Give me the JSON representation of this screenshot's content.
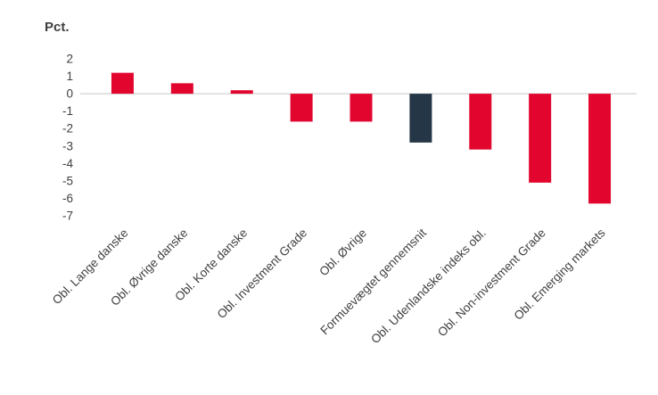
{
  "chart_data": {
    "type": "bar",
    "title": "",
    "ylabel": "Pct.",
    "xlabel": "",
    "categories": [
      "Obl. Lange danske",
      "Obl. Øvrige danske",
      "Obl. Korte danske",
      "Obl. Investment Grade",
      "Obl. Øvrige",
      "Formuevægtet gennemsnit",
      "Obl. Udenlandske indeks obl.",
      "Obl. Non-investment Grade",
      "Obl. Emerging markets"
    ],
    "values": [
      1.2,
      0.6,
      0.2,
      -1.6,
      -1.6,
      -2.8,
      -3.2,
      -5.1,
      -6.3
    ],
    "highlight_index": 5,
    "ylim": [
      -7,
      2
    ],
    "yticks": [
      2,
      1,
      0,
      -1,
      -2,
      -3,
      -4,
      -5,
      -6,
      -7
    ],
    "grid": false,
    "legend": "none",
    "colors": {
      "bar": "#e2062e",
      "highlight_bar": "#253746",
      "zero_line": "#d9d9d9",
      "tick_text": "#404040",
      "label_text": "#404040",
      "background": "#ffffff"
    }
  }
}
